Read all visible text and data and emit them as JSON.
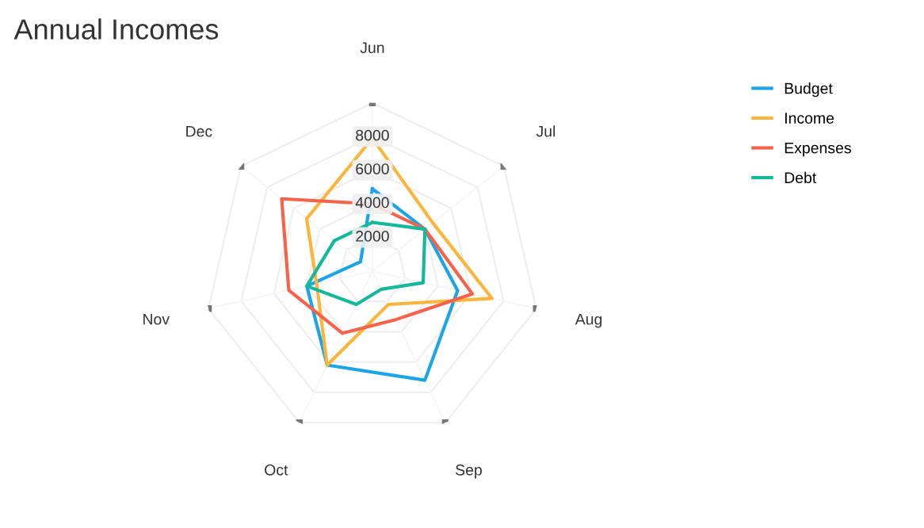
{
  "chart_data": {
    "type": "radar",
    "title": "Annual Incomes",
    "categories": [
      "Jun",
      "Jul",
      "Aug",
      "Sep",
      "Oct",
      "Nov",
      "Dec"
    ],
    "series": [
      {
        "name": "Budget",
        "color": "#1ba5e8",
        "values": [
          4900,
          4000,
          5200,
          7200,
          6200,
          4000,
          900
        ]
      },
      {
        "name": "Income",
        "color": "#fbb53c",
        "values": [
          7900,
          4600,
          7300,
          2200,
          6200,
          3400,
          5000
        ]
      },
      {
        "name": "Expenses",
        "color": "#f7624b",
        "values": [
          4000,
          4000,
          6100,
          3200,
          4100,
          5100,
          6900
        ]
      },
      {
        "name": "Debt",
        "color": "#13b99a",
        "values": [
          2900,
          4000,
          3100,
          1200,
          2200,
          4000,
          2900
        ]
      }
    ],
    "ylim": [
      0,
      10000
    ],
    "yticks": [
      2000,
      4000,
      6000,
      8000
    ],
    "grid": true,
    "legend": "top right",
    "marker": "none",
    "line_style": "solid"
  }
}
